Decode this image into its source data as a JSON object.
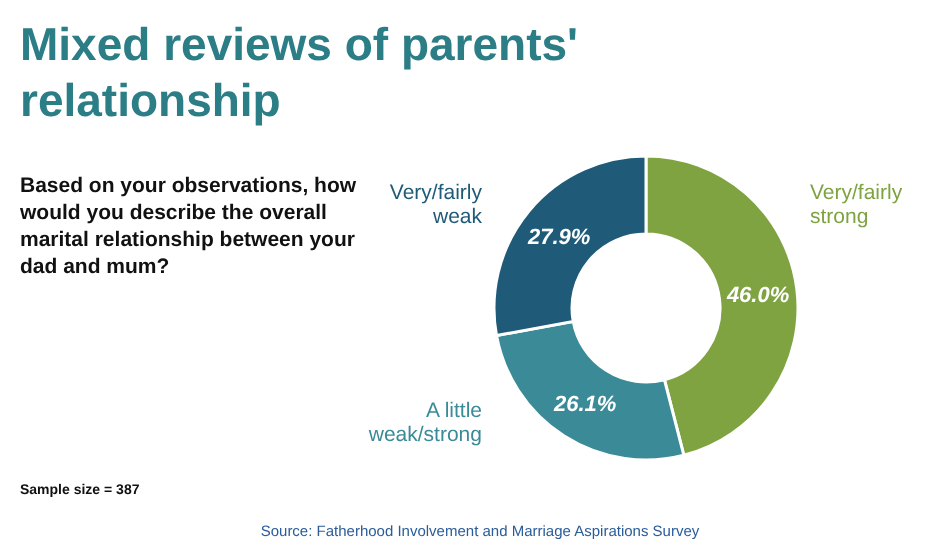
{
  "chart_data": {
    "type": "donut",
    "title": "Mixed reviews of parents' relationship",
    "subtitle": "Based on your observations, how would you describe the overall marital relationship between your dad and mum?",
    "categories": [
      "Very/fairly strong",
      "A little weak/strong",
      "Very/fairly weak"
    ],
    "values": [
      46.0,
      26.1,
      27.9
    ],
    "colors": [
      "#7ea340",
      "#3b8a97",
      "#1f5b78"
    ],
    "value_labels": [
      "46.0%",
      "26.1%",
      "27.9%"
    ],
    "annotations": [
      "Sample size = 387",
      "Source: Fatherhood Involvement and Marriage Aspirations Survey"
    ]
  }
}
